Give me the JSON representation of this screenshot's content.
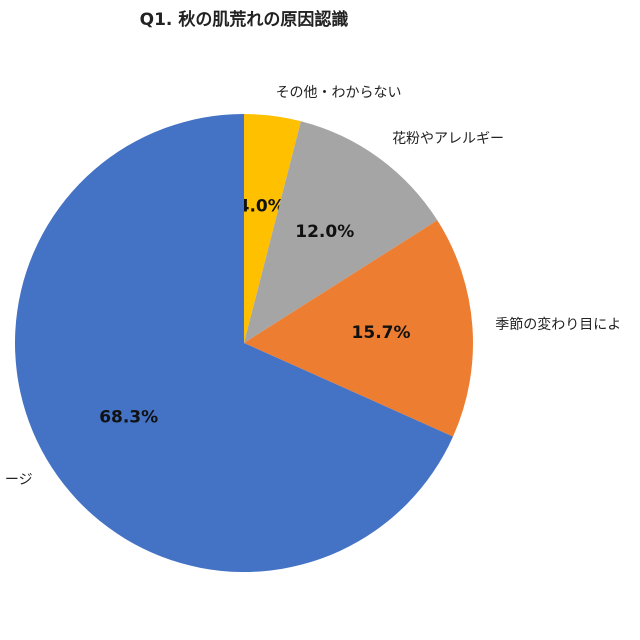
{
  "chart_data": {
    "type": "pie",
    "title": "Q1. 秋の肌荒れの原因認識",
    "categories": [
      "その他・わからない",
      "花粉やアレルギー",
      "季節の変わり目によ",
      "ージ"
    ],
    "values": [
      4.0,
      12.0,
      15.7,
      68.3
    ],
    "value_labels": [
      "4.0%",
      "12.0%",
      "15.7%",
      "68.3%"
    ],
    "colors": [
      "#ffc000",
      "#a5a5a5",
      "#ed7d31",
      "#4472c4"
    ]
  }
}
